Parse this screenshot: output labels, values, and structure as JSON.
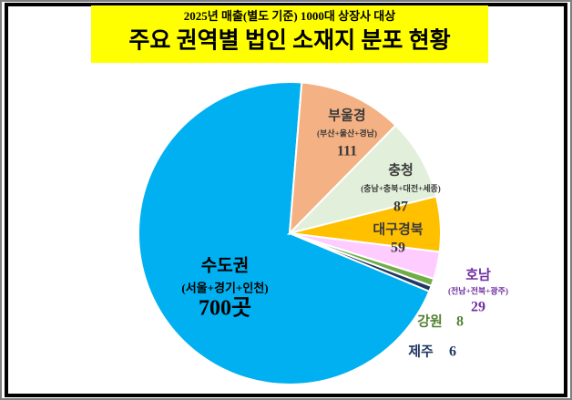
{
  "chart_data": {
    "type": "pie",
    "subtitle": "2025년 매출(별도 기준) 1000대 상장사 대상",
    "title": "주요 권역별 법인 소재지 분포 현황",
    "categories": [
      "수도권",
      "부울경",
      "충청",
      "대구경북",
      "호남",
      "강원",
      "제주"
    ],
    "notes": [
      "(서울+경기+인천)",
      "(부산+울산+경남)",
      "(충남+충북+대전+세종)",
      null,
      "(전남+전북+광주)",
      null,
      null
    ],
    "values": [
      700,
      111,
      87,
      59,
      29,
      8,
      6
    ],
    "value_labels": [
      "700곳",
      null,
      null,
      null,
      null,
      null,
      null
    ],
    "colors": [
      "#00b0f0",
      "#f4b183",
      "#e2efda",
      "#ffc000",
      "#ffccff",
      "#70ad47",
      "#1f3864"
    ],
    "label_colors": [
      "#000000",
      "#3a3a3a",
      "#3a3a3a",
      "#3a3a3a",
      "#7030a0",
      "#548235",
      "#1f3864"
    ]
  }
}
